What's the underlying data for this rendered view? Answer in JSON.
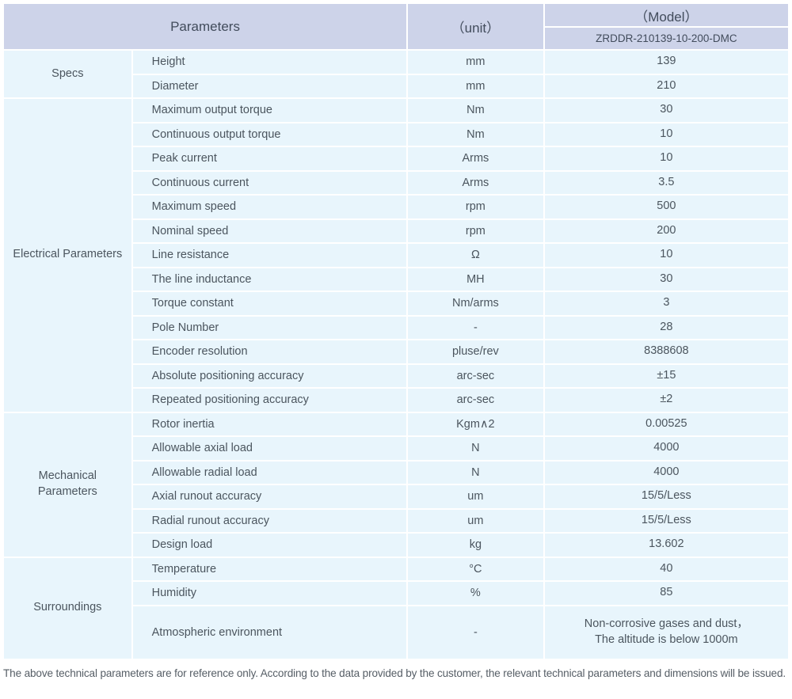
{
  "colors": {
    "header_bg": "#cdd3e9",
    "cell_bg": "#e8f5fc",
    "text": "#4b555e"
  },
  "header": {
    "parameters_label": "Parameters",
    "unit_label": "（unit）",
    "model_label": "（Model）",
    "model_value": "ZRDDR-210139-10-200-DMC"
  },
  "sections": [
    {
      "name": "Specs",
      "rows": [
        {
          "param": "Height",
          "unit": "mm",
          "value": "139"
        },
        {
          "param": "Diameter",
          "unit": "mm",
          "value": "210"
        }
      ]
    },
    {
      "name": "Electrical Parameters",
      "rows": [
        {
          "param": "Maximum output torque",
          "unit": "Nm",
          "value": "30"
        },
        {
          "param": "Continuous output torque",
          "unit": "Nm",
          "value": "10"
        },
        {
          "param": "Peak current",
          "unit": "Arms",
          "value": "10"
        },
        {
          "param": "Continuous current",
          "unit": "Arms",
          "value": "3.5"
        },
        {
          "param": "Maximum speed",
          "unit": "rpm",
          "value": "500"
        },
        {
          "param": "Nominal speed",
          "unit": "rpm",
          "value": "200"
        },
        {
          "param": "Line resistance",
          "unit": "Ω",
          "value": "10"
        },
        {
          "param": "The line inductance",
          "unit": "MH",
          "value": "30"
        },
        {
          "param": "Torque constant",
          "unit": "Nm/arms",
          "value": "3"
        },
        {
          "param": "Pole Number",
          "unit": "-",
          "value": "28"
        },
        {
          "param": "Encoder resolution",
          "unit": "pluse/rev",
          "value": "8388608"
        },
        {
          "param": "Absolute positioning accuracy",
          "unit": "arc-sec",
          "value": "±15"
        },
        {
          "param": "Repeated positioning accuracy",
          "unit": "arc-sec",
          "value": "±2"
        }
      ]
    },
    {
      "name": "Mechanical Parameters",
      "rows": [
        {
          "param": "Rotor inertia",
          "unit": "Kgm∧2",
          "value": "0.00525"
        },
        {
          "param": "Allowable axial load",
          "unit": "N",
          "value": "4000"
        },
        {
          "param": "Allowable radial load",
          "unit": "N",
          "value": "4000"
        },
        {
          "param": "Axial runout accuracy",
          "unit": "um",
          "value": "15/5/Less"
        },
        {
          "param": "Radial runout accuracy",
          "unit": "um",
          "value": "15/5/Less"
        },
        {
          "param": "Design load",
          "unit": "kg",
          "value": "13.602"
        }
      ]
    },
    {
      "name": "Surroundings",
      "rows": [
        {
          "param": "Temperature",
          "unit": "°C",
          "value": "40"
        },
        {
          "param": "Humidity",
          "unit": "%",
          "value": "85"
        },
        {
          "param": "Atmospheric environment",
          "unit": "-",
          "value": "Non-corrosive gases and dust，\nThe altitude is below 1000m",
          "tall": true
        }
      ]
    }
  ],
  "footer_note": "The above technical parameters are for reference only. According to the data provided by the customer, the relevant technical parameters and dimensions will be issued."
}
